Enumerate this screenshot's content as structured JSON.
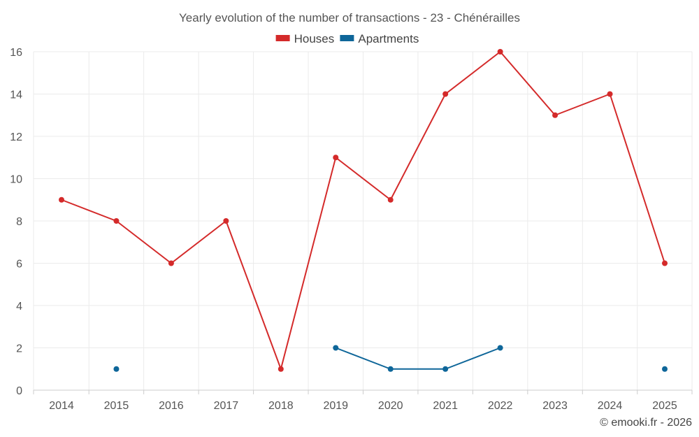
{
  "chart_data": {
    "type": "line",
    "title": "Yearly evolution of the number of transactions - 23 - Chénérailles",
    "categories": [
      "2014",
      "2015",
      "2016",
      "2017",
      "2018",
      "2019",
      "2020",
      "2021",
      "2022",
      "2023",
      "2024",
      "2025"
    ],
    "series": [
      {
        "name": "Houses",
        "color": "#d42a2a",
        "values": [
          9,
          8,
          6,
          8,
          1,
          11,
          9,
          14,
          16,
          13,
          14,
          6
        ]
      },
      {
        "name": "Apartments",
        "color": "#0e6699",
        "values": [
          null,
          1,
          null,
          null,
          null,
          2,
          1,
          1,
          2,
          null,
          null,
          1
        ]
      }
    ],
    "yticks": [
      0,
      2,
      4,
      6,
      8,
      10,
      12,
      14,
      16
    ],
    "ylim": [
      0,
      16
    ],
    "xlabel": "",
    "ylabel": "",
    "grid": true,
    "legend": "top-center"
  },
  "credit": "© emooki.fr - 2026"
}
